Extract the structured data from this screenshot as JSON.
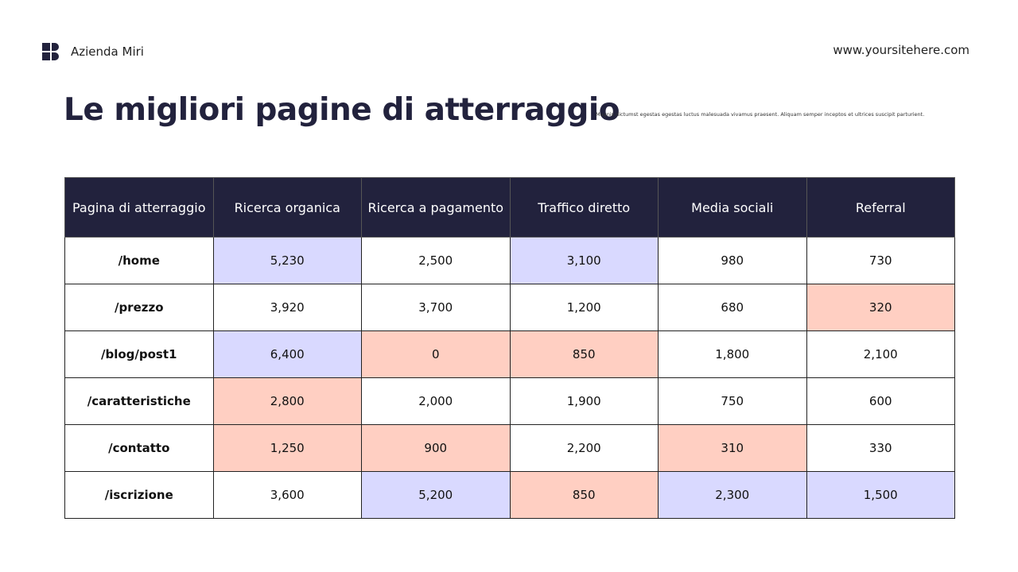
{
  "header": {
    "brand": "Azienda Miri",
    "website": "www.yoursitehere.com"
  },
  "title": "Le migliori pagine di atterraggio",
  "description": "Magnis dictumst egestas egestas luctus malesuada vivamus praesent. Aliquam semper inceptos et ultrices suscipit parturient.",
  "table": {
    "columns": [
      "Pagina di atterraggio",
      "Ricerca organica",
      "Ricerca a pagamento",
      "Traffico diretto",
      "Media sociali",
      "Referral"
    ],
    "rows": [
      [
        "/home",
        "5,230",
        "2,500",
        "3,100",
        "980",
        "730"
      ],
      [
        "/prezzo",
        "3,920",
        "3,700",
        "1,200",
        "680",
        "320"
      ],
      [
        "/blog/post1",
        "6,400",
        "0",
        "850",
        "1,800",
        "2,100"
      ],
      [
        "/caratteristiche",
        "2,800",
        "2,000",
        "1,900",
        "750",
        "600"
      ],
      [
        "/contatto",
        "1,250",
        "900",
        "2,200",
        "310",
        "330"
      ],
      [
        "/iscrizione",
        "3,600",
        "5,200",
        "850",
        "2,300",
        "1,500"
      ]
    ],
    "cell_colors": [
      [
        null,
        "#d9d9ff",
        null,
        "#d9d9ff",
        null,
        null
      ],
      [
        null,
        null,
        null,
        null,
        null,
        "#ffcfc2"
      ],
      [
        null,
        "#d9d9ff",
        "#ffcfc2",
        "#ffcfc2",
        null,
        null
      ],
      [
        null,
        "#ffcfc2",
        null,
        null,
        null,
        null
      ],
      [
        null,
        "#ffcfc2",
        "#ffcfc2",
        null,
        "#ffcfc2",
        null
      ],
      [
        null,
        null,
        "#d9d9ff",
        "#ffcfc2",
        "#d9d9ff",
        "#d9d9ff"
      ]
    ]
  }
}
